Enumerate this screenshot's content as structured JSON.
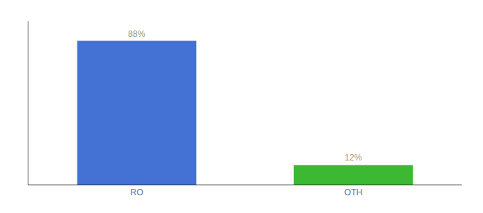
{
  "chart_data": {
    "type": "bar",
    "categories": [
      "RO",
      "OTH"
    ],
    "values": [
      88,
      12
    ],
    "value_labels": [
      "88%",
      "12%"
    ],
    "colors": [
      "#4472d4",
      "#3cb832"
    ],
    "ylim": [
      0,
      100
    ],
    "grid": false,
    "data_labels": true,
    "tick_labels": "x"
  }
}
